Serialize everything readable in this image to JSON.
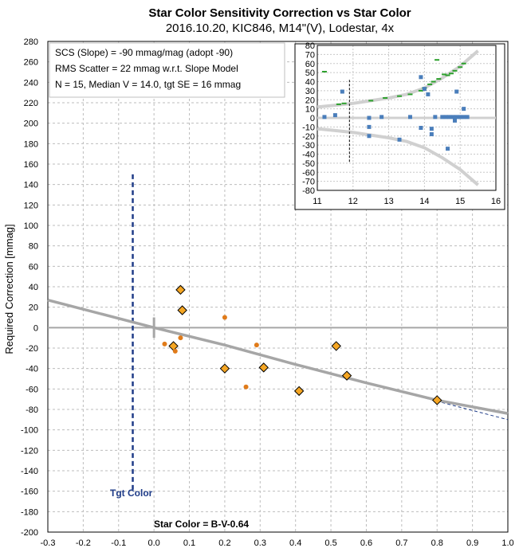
{
  "chart_data": [
    {
      "type": "scatter",
      "title": "Star Color Sensitivity Correction vs Star Color",
      "subtitle": "2016.10.20, KIC846, M14\"(V), Lodestar, 4x",
      "xlabel": "Star Color = B-V-0.64",
      "ylabel": "Required Correction [mmag]",
      "xlim": [
        -0.3,
        1.0
      ],
      "ylim": [
        -200,
        280
      ],
      "x_ticks": [
        -0.3,
        -0.2,
        -0.1,
        0.0,
        0.1,
        0.2,
        0.3,
        0.4,
        0.5,
        0.6,
        0.7,
        0.8,
        0.9,
        1.0
      ],
      "x_tick_labels": [
        "-0.3",
        "-0.2",
        "-0.1",
        "0.0",
        "0.1",
        "0.2",
        "0.3",
        "0.4",
        "0.5",
        "0.6",
        "0.7",
        "0.8",
        "0.9",
        "1.0"
      ],
      "y_ticks": [
        -200,
        -180,
        -160,
        -140,
        -120,
        -100,
        -80,
        -60,
        -40,
        -20,
        0,
        20,
        40,
        60,
        80,
        100,
        120,
        140,
        160,
        180,
        200,
        220,
        240,
        260,
        280
      ],
      "grid": true,
      "info_lines": [
        "SCS (Slope)  =  -90 mmag/mag (adopt -90)",
        "RMS Scatter = 22 mmag w.r.t. Slope Model",
        "N = 15,  Median V = 14.0, tgt SE = 16 mmag"
      ],
      "target_color_label": "Tgt Color",
      "target_color_x": -0.06,
      "series": [
        {
          "marker": "diamond",
          "color": "#f5a623",
          "points": [
            [
              0.055,
              -18
            ],
            [
              0.075,
              37
            ],
            [
              0.08,
              17
            ],
            [
              0.2,
              -40
            ],
            [
              0.31,
              -39
            ],
            [
              0.41,
              -62
            ],
            [
              0.515,
              -18
            ],
            [
              0.545,
              -47
            ],
            [
              0.8,
              -71
            ]
          ]
        },
        {
          "marker": "dot",
          "color": "#e07b1a",
          "points": [
            [
              0.03,
              -16
            ],
            [
              0.06,
              -23
            ],
            [
              0.075,
              -10
            ],
            [
              0.2,
              10
            ],
            [
              0.26,
              -58
            ],
            [
              0.29,
              -17
            ]
          ]
        }
      ],
      "model_curve": [
        [
          -0.3,
          27
        ],
        [
          0.0,
          0
        ],
        [
          0.2,
          -17
        ],
        [
          0.4,
          -36
        ],
        [
          0.6,
          -54
        ],
        [
          0.8,
          -71
        ],
        [
          1.0,
          -84
        ]
      ],
      "linear_model": [
        [
          0.6,
          -54
        ],
        [
          1.0,
          -90
        ]
      ]
    },
    {
      "type": "scatter",
      "xlim": [
        11,
        16
      ],
      "ylim": [
        -80,
        80
      ],
      "x_ticks": [
        11,
        12,
        13,
        14,
        15,
        16
      ],
      "x_tick_labels": [
        "11",
        "12",
        "13",
        "14",
        "15",
        "16"
      ],
      "y_ticks": [
        -80,
        -70,
        -60,
        -50,
        -40,
        -30,
        -20,
        -10,
        0,
        10,
        20,
        30,
        40,
        50,
        60,
        70,
        80
      ],
      "grid": true,
      "target_mag": 11.9,
      "residual_points": [
        [
          11.2,
          1
        ],
        [
          11.5,
          3
        ],
        [
          11.7,
          29
        ],
        [
          12.45,
          0
        ],
        [
          12.45,
          -10
        ],
        [
          12.45,
          -20
        ],
        [
          12.8,
          1
        ],
        [
          13.3,
          -24
        ],
        [
          13.6,
          1
        ],
        [
          13.9,
          45
        ],
        [
          13.9,
          -11
        ],
        [
          14.0,
          32
        ],
        [
          14.1,
          26
        ],
        [
          14.2,
          -12
        ],
        [
          14.2,
          -18
        ],
        [
          14.3,
          1
        ],
        [
          14.5,
          1
        ],
        [
          14.6,
          1
        ],
        [
          14.65,
          -34
        ],
        [
          14.7,
          1
        ],
        [
          14.8,
          1
        ],
        [
          14.85,
          -3
        ],
        [
          14.9,
          29
        ],
        [
          14.9,
          1
        ],
        [
          15.0,
          1
        ],
        [
          15.1,
          10
        ],
        [
          15.1,
          1
        ],
        [
          15.2,
          1
        ]
      ],
      "se_points": [
        [
          11.2,
          51
        ],
        [
          11.6,
          15
        ],
        [
          11.75,
          16
        ],
        [
          12.5,
          19
        ],
        [
          12.9,
          22
        ],
        [
          13.3,
          24
        ],
        [
          13.6,
          26
        ],
        [
          13.9,
          30
        ],
        [
          14.0,
          33
        ],
        [
          14.15,
          37
        ],
        [
          14.25,
          40
        ],
        [
          14.35,
          64
        ],
        [
          14.4,
          43
        ],
        [
          14.55,
          48
        ],
        [
          14.65,
          47
        ],
        [
          14.75,
          49
        ],
        [
          14.85,
          52
        ],
        [
          15.0,
          56
        ],
        [
          15.1,
          60
        ]
      ],
      "envelope": [
        [
          11.0,
          12
        ],
        [
          11.5,
          14
        ],
        [
          12.0,
          16
        ],
        [
          12.5,
          19
        ],
        [
          13.0,
          22
        ],
        [
          13.5,
          26
        ],
        [
          14.0,
          33
        ],
        [
          14.5,
          44
        ],
        [
          15.0,
          57
        ],
        [
          15.5,
          74
        ]
      ]
    }
  ]
}
